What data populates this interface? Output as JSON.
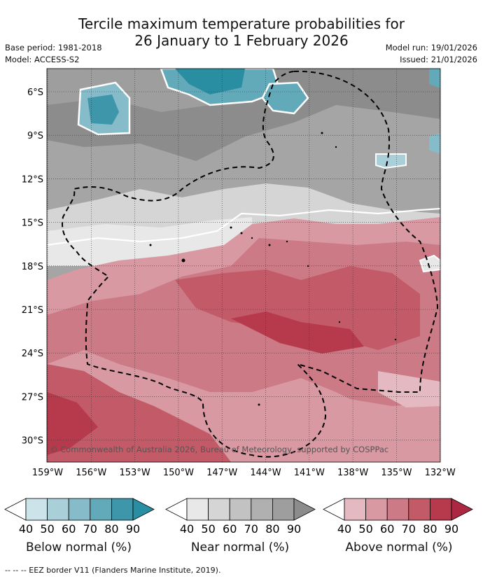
{
  "title_line1": "Tercile maximum temperature probabilities for",
  "title_line2": "26 January to 1 February 2026",
  "base_period": "Base period: 1981-2018",
  "model": "Model: ACCESS-S2",
  "model_run": "Model run: 19/01/2026",
  "issued": "Issued: 21/01/2026",
  "copyright": "© Commonwealth of Australia 2026, Bureau of Meteorology, supported by COSPPac",
  "lat_labels": [
    "6°S",
    "9°S",
    "12°S",
    "15°S",
    "18°S",
    "21°S",
    "24°S",
    "27°S",
    "30°S"
  ],
  "lon_labels": [
    "159°W",
    "156°W",
    "153°W",
    "150°W",
    "147°W",
    "144°W",
    "141°W",
    "138°W",
    "135°W",
    "132°W"
  ],
  "legend": {
    "ticks": [
      "40",
      "50",
      "60",
      "70",
      "80",
      "90"
    ],
    "below": {
      "label": "Below normal (%)",
      "colors": [
        "#ffffff",
        "#cde3ea",
        "#a9cfd9",
        "#86bcca",
        "#62a9ba",
        "#3e96aa",
        "#2a8ea2"
      ]
    },
    "near": {
      "label": "Near normal (%)",
      "colors": [
        "#ffffff",
        "#e8e8e8",
        "#d5d5d5",
        "#c2c2c2",
        "#b0b0b0",
        "#9e9e9e",
        "#8c8c8c"
      ]
    },
    "above": {
      "label": "Above normal (%)",
      "colors": [
        "#ffffff",
        "#e4b9c1",
        "#d899a3",
        "#cc7a86",
        "#c25a68",
        "#b63a4c",
        "#ac2842"
      ]
    }
  },
  "footer": "-- -- -- EEZ border V11 (Flanders Marine Institute, 2019)."
}
